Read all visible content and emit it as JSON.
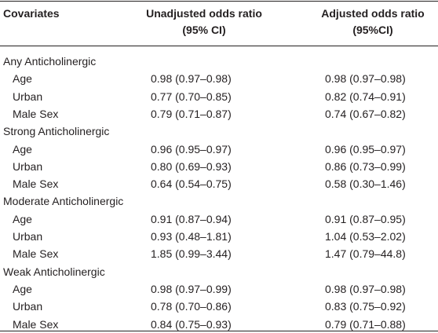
{
  "table": {
    "headers": {
      "covariates": "Covariates",
      "unadjusted_line1": "Unadjusted odds ratio",
      "unadjusted_line2": "(95% CI)",
      "adjusted_line1": "Adjusted odds ratio",
      "adjusted_line2": "(95%CI)"
    },
    "groups": [
      {
        "label": "Any Anticholinergic",
        "rows": [
          {
            "covariate": "Age",
            "unadjusted": "0.98 (0.97–0.98)",
            "adjusted": "0.98 (0.97–0.98)"
          },
          {
            "covariate": "Urban",
            "unadjusted": "0.77 (0.70–0.85)",
            "adjusted": "0.82 (0.74–0.91)"
          },
          {
            "covariate": "Male Sex",
            "unadjusted": "0.79 (0.71–0.87)",
            "adjusted": "0.74 (0.67–0.82)"
          }
        ]
      },
      {
        "label": "Strong Anticholinergic",
        "rows": [
          {
            "covariate": "Age",
            "unadjusted": "0.96 (0.95–0.97)",
            "adjusted": "0.96 (0.95–0.97)"
          },
          {
            "covariate": "Urban",
            "unadjusted": "0.80 (0.69–0.93)",
            "adjusted": "0.86 (0.73–0.99)"
          },
          {
            "covariate": "Male Sex",
            "unadjusted": "0.64 (0.54–0.75)",
            "adjusted": "0.58 (0.30–1.46)"
          }
        ]
      },
      {
        "label": "Moderate Anticholinergic",
        "rows": [
          {
            "covariate": "Age",
            "unadjusted": "0.91 (0.87–0.94)",
            "adjusted": "0.91 (0.87–0.95)"
          },
          {
            "covariate": "Urban",
            "unadjusted": "0.93 (0.48–1.81)",
            "adjusted": "1.04 (0.53–2.02)"
          },
          {
            "covariate": "Male Sex",
            "unadjusted": "1.85 (0.99–3.44)",
            "adjusted": "1.47 (0.79–44.8)"
          }
        ]
      },
      {
        "label": "Weak Anticholinergic",
        "rows": [
          {
            "covariate": "Age",
            "unadjusted": "0.98 (0.97–0.99)",
            "adjusted": "0.98 (0.97–0.98)"
          },
          {
            "covariate": "Urban",
            "unadjusted": "0.78 (0.70–0.86)",
            "adjusted": "0.83 (0.75–0.92)"
          },
          {
            "covariate": "Male Sex",
            "unadjusted": "0.84 (0.75–0.93)",
            "adjusted": "0.79 (0.71–0.88)"
          }
        ]
      }
    ]
  }
}
